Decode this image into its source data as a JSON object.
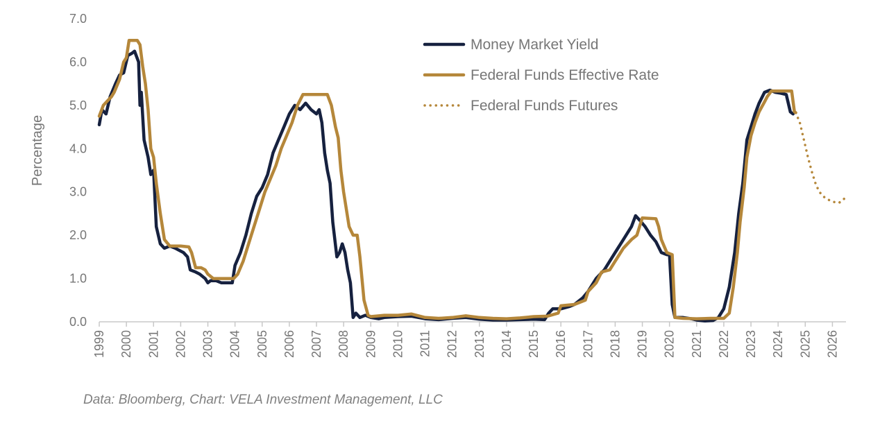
{
  "source_note": "Data: Bloomberg, Chart: VELA Investment Management, LLC",
  "chart_data": {
    "type": "line",
    "title": "",
    "xlabel": "",
    "ylabel": "Percentage",
    "xlim": [
      1999,
      2026.5
    ],
    "ylim": [
      0,
      7
    ],
    "y_ticks": [
      "0.0",
      "1.0",
      "2.0",
      "3.0",
      "4.0",
      "5.0",
      "6.0",
      "7.0"
    ],
    "x_ticks": [
      "1999",
      "2000",
      "2001",
      "2002",
      "2003",
      "2004",
      "2005",
      "2006",
      "2007",
      "2008",
      "2009",
      "2010",
      "2011",
      "2012",
      "2013",
      "2014",
      "2015",
      "2016",
      "2017",
      "2018",
      "2019",
      "2020",
      "2021",
      "2022",
      "2023",
      "2024",
      "2025",
      "2026"
    ],
    "grid": false,
    "legend_position": "top-right",
    "series": [
      {
        "name": "Money Market Yield",
        "color": "#16213f",
        "style": "solid",
        "points": [
          [
            1999.0,
            4.55
          ],
          [
            1999.1,
            4.9
          ],
          [
            1999.25,
            4.8
          ],
          [
            1999.4,
            5.2
          ],
          [
            1999.6,
            5.5
          ],
          [
            1999.75,
            5.7
          ],
          [
            1999.9,
            5.75
          ],
          [
            2000.05,
            6.15
          ],
          [
            2000.2,
            6.2
          ],
          [
            2000.3,
            6.25
          ],
          [
            2000.45,
            6.0
          ],
          [
            2000.5,
            5.0
          ],
          [
            2000.55,
            5.3
          ],
          [
            2000.65,
            4.2
          ],
          [
            2000.8,
            3.8
          ],
          [
            2000.9,
            3.4
          ],
          [
            2001.0,
            3.5
          ],
          [
            2001.1,
            2.2
          ],
          [
            2001.25,
            1.8
          ],
          [
            2001.4,
            1.7
          ],
          [
            2001.6,
            1.75
          ],
          [
            2001.8,
            1.7
          ],
          [
            2001.95,
            1.65
          ],
          [
            2002.1,
            1.6
          ],
          [
            2002.25,
            1.5
          ],
          [
            2002.35,
            1.2
          ],
          [
            2002.55,
            1.15
          ],
          [
            2002.7,
            1.1
          ],
          [
            2002.9,
            1.0
          ],
          [
            2003.0,
            0.9
          ],
          [
            2003.1,
            0.95
          ],
          [
            2003.3,
            0.95
          ],
          [
            2003.5,
            0.9
          ],
          [
            2003.7,
            0.9
          ],
          [
            2003.9,
            0.9
          ],
          [
            2004.0,
            1.3
          ],
          [
            2004.2,
            1.6
          ],
          [
            2004.4,
            2.0
          ],
          [
            2004.6,
            2.5
          ],
          [
            2004.8,
            2.9
          ],
          [
            2005.0,
            3.1
          ],
          [
            2005.2,
            3.4
          ],
          [
            2005.4,
            3.9
          ],
          [
            2005.6,
            4.2
          ],
          [
            2005.8,
            4.5
          ],
          [
            2006.0,
            4.8
          ],
          [
            2006.2,
            5.0
          ],
          [
            2006.4,
            4.9
          ],
          [
            2006.6,
            5.05
          ],
          [
            2006.8,
            4.9
          ],
          [
            2007.0,
            4.8
          ],
          [
            2007.1,
            4.9
          ],
          [
            2007.2,
            4.6
          ],
          [
            2007.3,
            3.9
          ],
          [
            2007.4,
            3.5
          ],
          [
            2007.5,
            3.2
          ],
          [
            2007.6,
            2.3
          ],
          [
            2007.75,
            1.5
          ],
          [
            2007.85,
            1.6
          ],
          [
            2007.95,
            1.8
          ],
          [
            2008.05,
            1.6
          ],
          [
            2008.15,
            1.2
          ],
          [
            2008.25,
            0.9
          ],
          [
            2008.35,
            0.1
          ],
          [
            2008.45,
            0.2
          ],
          [
            2008.6,
            0.1
          ],
          [
            2008.8,
            0.15
          ],
          [
            2009.0,
            0.1
          ],
          [
            2009.3,
            0.07
          ],
          [
            2009.5,
            0.1
          ],
          [
            2010.0,
            0.12
          ],
          [
            2010.5,
            0.13
          ],
          [
            2011.0,
            0.07
          ],
          [
            2011.5,
            0.05
          ],
          [
            2012.0,
            0.08
          ],
          [
            2012.5,
            0.1
          ],
          [
            2013.0,
            0.06
          ],
          [
            2013.5,
            0.04
          ],
          [
            2014.0,
            0.04
          ],
          [
            2014.5,
            0.05
          ],
          [
            2015.0,
            0.06
          ],
          [
            2015.4,
            0.05
          ],
          [
            2015.55,
            0.2
          ],
          [
            2015.7,
            0.3
          ],
          [
            2016.0,
            0.3
          ],
          [
            2016.3,
            0.35
          ],
          [
            2016.5,
            0.4
          ],
          [
            2016.8,
            0.55
          ],
          [
            2017.0,
            0.7
          ],
          [
            2017.3,
            1.0
          ],
          [
            2017.6,
            1.2
          ],
          [
            2018.0,
            1.6
          ],
          [
            2018.3,
            1.9
          ],
          [
            2018.6,
            2.2
          ],
          [
            2018.75,
            2.45
          ],
          [
            2018.9,
            2.35
          ],
          [
            2019.1,
            2.2
          ],
          [
            2019.3,
            2.0
          ],
          [
            2019.5,
            1.85
          ],
          [
            2019.7,
            1.6
          ],
          [
            2019.9,
            1.55
          ],
          [
            2020.0,
            1.55
          ],
          [
            2020.1,
            0.4
          ],
          [
            2020.2,
            0.1
          ],
          [
            2020.5,
            0.1
          ],
          [
            2020.8,
            0.07
          ],
          [
            2021.0,
            0.04
          ],
          [
            2021.3,
            0.02
          ],
          [
            2021.6,
            0.03
          ],
          [
            2021.8,
            0.1
          ],
          [
            2022.0,
            0.3
          ],
          [
            2022.2,
            0.8
          ],
          [
            2022.4,
            1.6
          ],
          [
            2022.55,
            2.5
          ],
          [
            2022.7,
            3.2
          ],
          [
            2022.85,
            4.2
          ],
          [
            2023.0,
            4.5
          ],
          [
            2023.15,
            4.8
          ],
          [
            2023.3,
            5.05
          ],
          [
            2023.5,
            5.3
          ],
          [
            2023.7,
            5.35
          ],
          [
            2023.9,
            5.3
          ],
          [
            2024.1,
            5.28
          ],
          [
            2024.3,
            5.25
          ],
          [
            2024.45,
            4.85
          ],
          [
            2024.55,
            4.8
          ]
        ]
      },
      {
        "name": "Federal Funds Effective Rate",
        "color": "#b5873a",
        "style": "solid",
        "points": [
          [
            1999.0,
            4.75
          ],
          [
            1999.15,
            5.0
          ],
          [
            1999.3,
            5.1
          ],
          [
            1999.45,
            5.2
          ],
          [
            1999.55,
            5.3
          ],
          [
            1999.75,
            5.6
          ],
          [
            1999.9,
            6.0
          ],
          [
            2000.0,
            6.1
          ],
          [
            2000.1,
            6.5
          ],
          [
            2000.2,
            6.5
          ],
          [
            2000.4,
            6.5
          ],
          [
            2000.5,
            6.4
          ],
          [
            2000.6,
            5.9
          ],
          [
            2000.7,
            5.5
          ],
          [
            2000.8,
            4.9
          ],
          [
            2000.9,
            4.0
          ],
          [
            2001.0,
            3.8
          ],
          [
            2001.1,
            3.2
          ],
          [
            2001.25,
            2.5
          ],
          [
            2001.4,
            1.9
          ],
          [
            2001.6,
            1.75
          ],
          [
            2001.8,
            1.75
          ],
          [
            2002.0,
            1.75
          ],
          [
            2002.3,
            1.73
          ],
          [
            2002.4,
            1.6
          ],
          [
            2002.55,
            1.25
          ],
          [
            2002.75,
            1.25
          ],
          [
            2002.9,
            1.2
          ],
          [
            2003.0,
            1.1
          ],
          [
            2003.2,
            1.0
          ],
          [
            2003.5,
            1.0
          ],
          [
            2003.7,
            1.0
          ],
          [
            2003.95,
            1.0
          ],
          [
            2004.1,
            1.1
          ],
          [
            2004.3,
            1.4
          ],
          [
            2004.5,
            1.8
          ],
          [
            2004.7,
            2.2
          ],
          [
            2004.9,
            2.6
          ],
          [
            2005.1,
            3.0
          ],
          [
            2005.3,
            3.3
          ],
          [
            2005.5,
            3.6
          ],
          [
            2005.7,
            4.0
          ],
          [
            2005.9,
            4.3
          ],
          [
            2006.1,
            4.6
          ],
          [
            2006.3,
            5.0
          ],
          [
            2006.5,
            5.25
          ],
          [
            2006.8,
            5.25
          ],
          [
            2007.0,
            5.25
          ],
          [
            2007.2,
            5.25
          ],
          [
            2007.4,
            5.25
          ],
          [
            2007.55,
            5.0
          ],
          [
            2007.7,
            4.5
          ],
          [
            2007.8,
            4.25
          ],
          [
            2007.9,
            3.5
          ],
          [
            2008.0,
            3.0
          ],
          [
            2008.2,
            2.2
          ],
          [
            2008.35,
            2.0
          ],
          [
            2008.5,
            2.0
          ],
          [
            2008.6,
            1.5
          ],
          [
            2008.75,
            0.5
          ],
          [
            2008.9,
            0.15
          ],
          [
            2009.0,
            0.12
          ],
          [
            2009.5,
            0.15
          ],
          [
            2010.0,
            0.15
          ],
          [
            2010.5,
            0.18
          ],
          [
            2011.0,
            0.1
          ],
          [
            2011.5,
            0.08
          ],
          [
            2012.0,
            0.1
          ],
          [
            2012.5,
            0.14
          ],
          [
            2013.0,
            0.1
          ],
          [
            2013.5,
            0.08
          ],
          [
            2014.0,
            0.07
          ],
          [
            2014.5,
            0.09
          ],
          [
            2015.0,
            0.12
          ],
          [
            2015.5,
            0.13
          ],
          [
            2015.9,
            0.2
          ],
          [
            2016.0,
            0.37
          ],
          [
            2016.5,
            0.4
          ],
          [
            2016.9,
            0.5
          ],
          [
            2017.0,
            0.7
          ],
          [
            2017.3,
            0.9
          ],
          [
            2017.5,
            1.15
          ],
          [
            2017.8,
            1.2
          ],
          [
            2018.0,
            1.4
          ],
          [
            2018.3,
            1.7
          ],
          [
            2018.6,
            1.9
          ],
          [
            2018.8,
            2.0
          ],
          [
            2019.0,
            2.4
          ],
          [
            2019.5,
            2.38
          ],
          [
            2019.6,
            2.2
          ],
          [
            2019.7,
            1.9
          ],
          [
            2019.9,
            1.6
          ],
          [
            2020.1,
            1.55
          ],
          [
            2020.2,
            0.1
          ],
          [
            2020.5,
            0.08
          ],
          [
            2021.0,
            0.07
          ],
          [
            2021.5,
            0.08
          ],
          [
            2022.0,
            0.08
          ],
          [
            2022.2,
            0.2
          ],
          [
            2022.35,
            0.8
          ],
          [
            2022.5,
            1.6
          ],
          [
            2022.6,
            2.3
          ],
          [
            2022.75,
            3.1
          ],
          [
            2022.85,
            3.8
          ],
          [
            2023.0,
            4.3
          ],
          [
            2023.15,
            4.6
          ],
          [
            2023.3,
            4.85
          ],
          [
            2023.5,
            5.08
          ],
          [
            2023.6,
            5.2
          ],
          [
            2023.75,
            5.33
          ],
          [
            2024.0,
            5.33
          ],
          [
            2024.3,
            5.33
          ],
          [
            2024.5,
            5.33
          ],
          [
            2024.6,
            4.85
          ],
          [
            2024.65,
            4.83
          ]
        ]
      },
      {
        "name": "Federal Funds Futures",
        "color": "#b5873a",
        "style": "dotted",
        "points": [
          [
            2024.65,
            4.83
          ],
          [
            2024.8,
            4.6
          ],
          [
            2024.95,
            4.2
          ],
          [
            2025.1,
            3.8
          ],
          [
            2025.25,
            3.45
          ],
          [
            2025.4,
            3.15
          ],
          [
            2025.55,
            2.98
          ],
          [
            2025.7,
            2.88
          ],
          [
            2025.85,
            2.82
          ],
          [
            2026.0,
            2.78
          ],
          [
            2026.15,
            2.75
          ],
          [
            2026.25,
            2.75
          ],
          [
            2026.35,
            2.8
          ],
          [
            2026.45,
            2.85
          ]
        ]
      }
    ]
  }
}
